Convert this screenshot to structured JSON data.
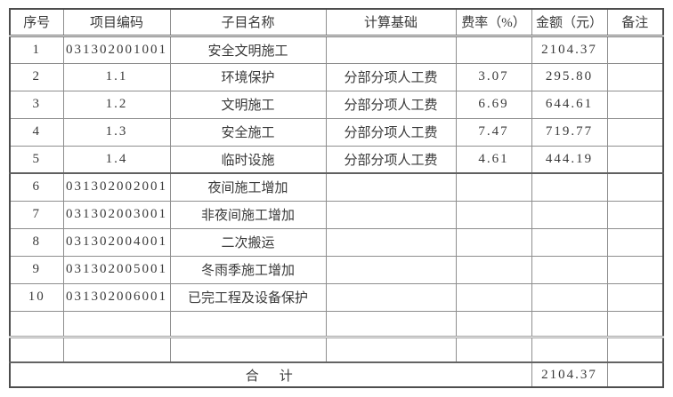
{
  "colors": {
    "background": "#ffffff",
    "text": "#3a3a3a",
    "border_outer": "#4d4d4d",
    "border_inner": "#8e8e8e"
  },
  "table": {
    "columns": [
      {
        "key": "index",
        "label": "序号"
      },
      {
        "key": "code",
        "label": "项目编码"
      },
      {
        "key": "name",
        "label": "子目名称"
      },
      {
        "key": "basis",
        "label": "计算基础"
      },
      {
        "key": "rate",
        "label": "费率（%）"
      },
      {
        "key": "amount",
        "label": "金额（元）"
      },
      {
        "key": "remark",
        "label": "备注"
      }
    ],
    "rows": [
      {
        "index": "1",
        "code": "031302001001",
        "name": "安全文明施工",
        "basis": "",
        "rate": "",
        "amount": "2104.37",
        "remark": ""
      },
      {
        "index": "2",
        "code": "1.1",
        "name": "环境保护",
        "basis": "分部分项人工费",
        "rate": "3.07",
        "amount": "295.80",
        "remark": ""
      },
      {
        "index": "3",
        "code": "1.2",
        "name": "文明施工",
        "basis": "分部分项人工费",
        "rate": "6.69",
        "amount": "644.61",
        "remark": ""
      },
      {
        "index": "4",
        "code": "1.3",
        "name": "安全施工",
        "basis": "分部分项人工费",
        "rate": "7.47",
        "amount": "719.77",
        "remark": ""
      },
      {
        "index": "5",
        "code": "1.4",
        "name": "临时设施",
        "basis": "分部分项人工费",
        "rate": "4.61",
        "amount": "444.19",
        "remark": ""
      },
      {
        "index": "6",
        "code": "031302002001",
        "name": "夜间施工增加",
        "basis": "",
        "rate": "",
        "amount": "",
        "remark": ""
      },
      {
        "index": "7",
        "code": "031302003001",
        "name": "非夜间施工增加",
        "basis": "",
        "rate": "",
        "amount": "",
        "remark": ""
      },
      {
        "index": "8",
        "code": "031302004001",
        "name": "二次搬运",
        "basis": "",
        "rate": "",
        "amount": "",
        "remark": ""
      },
      {
        "index": "9",
        "code": "031302005001",
        "name": "冬雨季施工增加",
        "basis": "",
        "rate": "",
        "amount": "",
        "remark": ""
      },
      {
        "index": "10",
        "code": "031302006001",
        "name": "已完工程及设备保护",
        "basis": "",
        "rate": "",
        "amount": "",
        "remark": ""
      },
      {
        "index": "",
        "code": "",
        "name": "",
        "basis": "",
        "rate": "",
        "amount": "",
        "remark": ""
      },
      {
        "index": "",
        "code": "",
        "name": "",
        "basis": "",
        "rate": "",
        "amount": "",
        "remark": ""
      }
    ],
    "total": {
      "label": "合　计",
      "amount": "2104.37",
      "remark": ""
    }
  }
}
